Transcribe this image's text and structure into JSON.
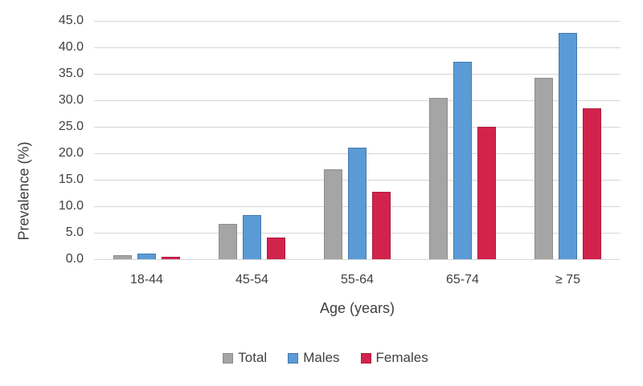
{
  "chart_data": {
    "type": "bar",
    "title": "",
    "categories": [
      "18-44",
      "45-54",
      "55-64",
      "65-74",
      "≥ 75"
    ],
    "series": [
      {
        "name": "Total",
        "color": "#a5a5a5",
        "border_color": "#8c8c8c",
        "values": [
          0.8,
          6.6,
          17.0,
          30.5,
          34.2
        ]
      },
      {
        "name": "Males",
        "color": "#5b9bd5",
        "border_color": "#4179ae",
        "values": [
          1.0,
          8.4,
          21.0,
          37.3,
          42.7
        ]
      },
      {
        "name": "Females",
        "color": "#d2234c",
        "border_color": "#aa1c3e",
        "values": [
          0.5,
          4.1,
          12.7,
          25.0,
          28.5
        ]
      }
    ],
    "xlabel": "Age (years)",
    "ylabel": "Prevalence (%)",
    "ylim": [
      0,
      45
    ],
    "ytick_step": 5,
    "ytick_labels": [
      "0.0",
      "5.0",
      "10.0",
      "15.0",
      "20.0",
      "25.0",
      "30.0",
      "35.0",
      "40.0",
      "45.0"
    ],
    "grid": true,
    "gridline_color": "#d6d6d6",
    "legend_position": "bottom",
    "text_color": "#404040"
  }
}
